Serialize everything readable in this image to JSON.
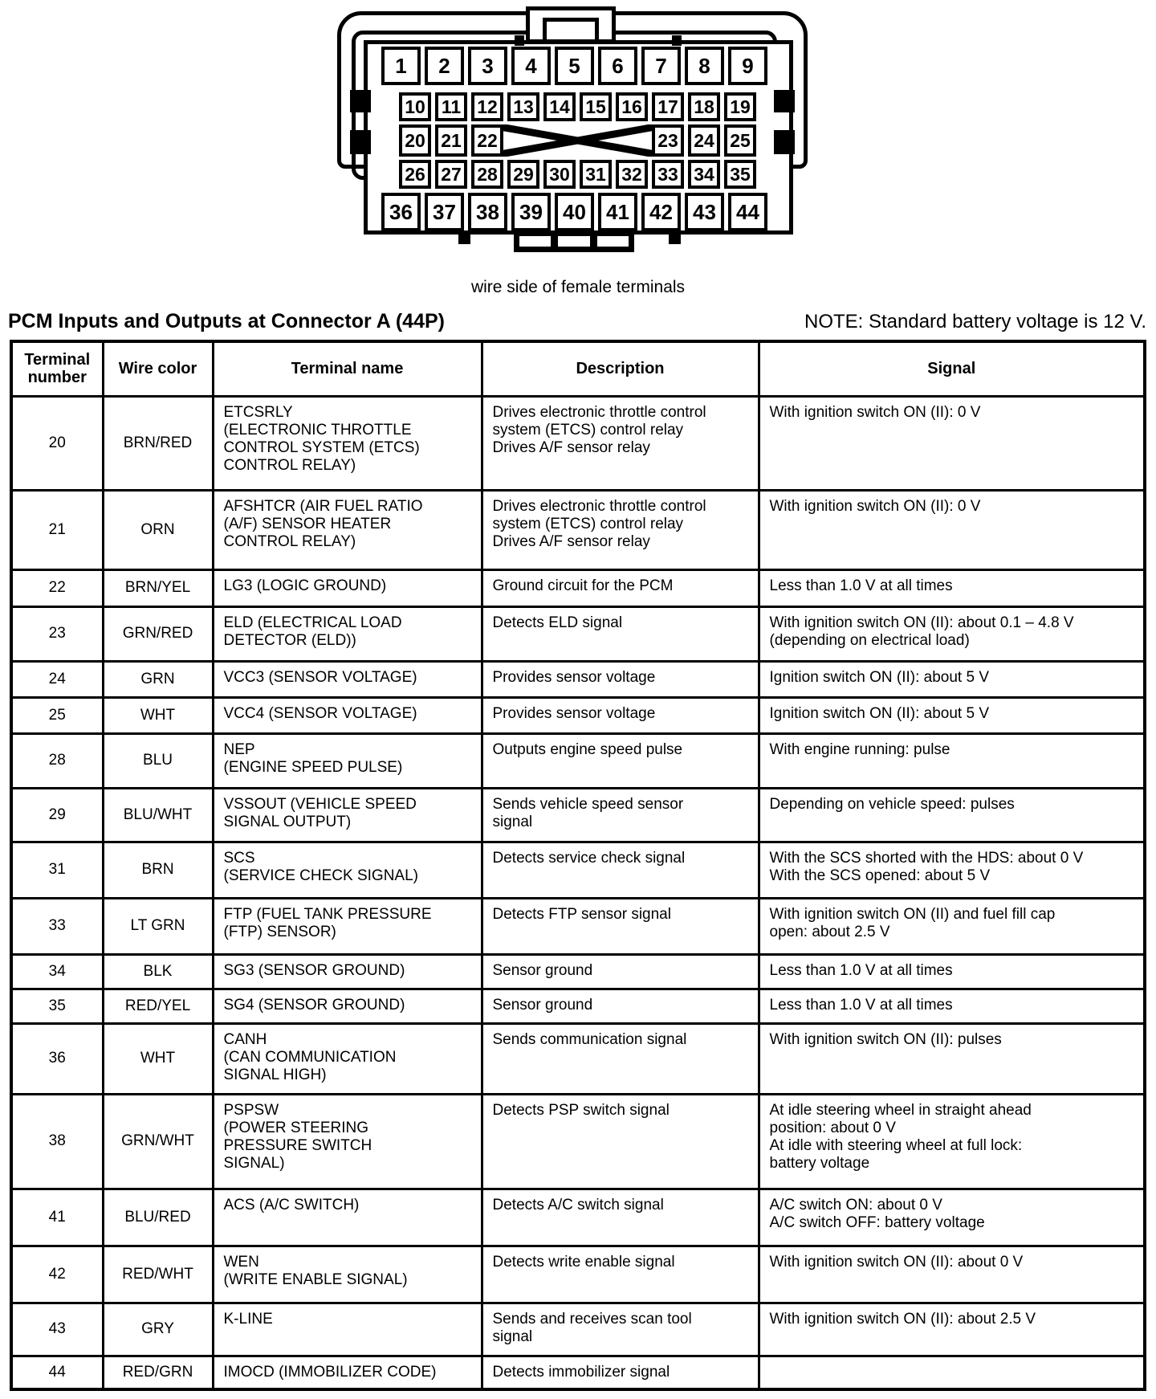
{
  "connector": {
    "caption": "wire side of female terminals",
    "pin_rows": [
      [
        1,
        2,
        3,
        4,
        5,
        6,
        7,
        8,
        9
      ],
      [
        10,
        11,
        12,
        13,
        14,
        15,
        16,
        17,
        18,
        19
      ],
      [
        20,
        21,
        22,
        23,
        24,
        25
      ],
      [
        26,
        27,
        28,
        29,
        30,
        31,
        32,
        33,
        34,
        35
      ],
      [
        36,
        37,
        38,
        39,
        40,
        41,
        42,
        43,
        44
      ]
    ]
  },
  "section": {
    "title": "PCM Inputs and Outputs at Connector A (44P)",
    "note": "NOTE: Standard battery voltage is 12 V."
  },
  "table": {
    "headers": [
      "Terminal\nnumber",
      "Wire color",
      "Terminal name",
      "Description",
      "Signal"
    ],
    "rows": [
      {
        "terminal": "20",
        "wire_color": "BRN/RED",
        "terminal_name": "ETCSRLY\n(ELECTRONIC THROTTLE\nCONTROL SYSTEM (ETCS)\nCONTROL RELAY)",
        "description": "Drives electronic throttle control\nsystem (ETCS) control relay\nDrives A/F sensor relay",
        "signal": "With ignition switch ON (II): 0 V"
      },
      {
        "terminal": "21",
        "wire_color": "ORN",
        "terminal_name": "AFSHTCR (AIR FUEL RATIO\n(A/F) SENSOR HEATER\nCONTROL RELAY)",
        "description": "Drives electronic throttle control\nsystem (ETCS) control relay\nDrives A/F sensor relay",
        "signal": "With ignition switch ON (II): 0 V"
      },
      {
        "terminal": "22",
        "wire_color": "BRN/YEL",
        "terminal_name": "LG3 (LOGIC GROUND)",
        "description": "Ground circuit for the PCM",
        "signal": "Less than 1.0 V at all times"
      },
      {
        "terminal": "23",
        "wire_color": "GRN/RED",
        "terminal_name": "ELD (ELECTRICAL LOAD\nDETECTOR (ELD))",
        "description": "Detects ELD signal",
        "signal": "With ignition switch ON (II): about 0.1 – 4.8 V\n(depending on electrical load)"
      },
      {
        "terminal": "24",
        "wire_color": "GRN",
        "terminal_name": "VCC3 (SENSOR VOLTAGE)",
        "description": "Provides sensor voltage",
        "signal": "Ignition switch ON (II): about 5 V"
      },
      {
        "terminal": "25",
        "wire_color": "WHT",
        "terminal_name": "VCC4 (SENSOR VOLTAGE)",
        "description": "Provides sensor voltage",
        "signal": "Ignition switch ON (II): about 5 V"
      },
      {
        "terminal": "28",
        "wire_color": "BLU",
        "terminal_name": "NEP\n(ENGINE SPEED PULSE)",
        "description": "Outputs engine speed pulse",
        "signal": "With engine running: pulse"
      },
      {
        "terminal": "29",
        "wire_color": "BLU/WHT",
        "terminal_name": "VSSOUT (VEHICLE SPEED\nSIGNAL OUTPUT)",
        "description": "Sends vehicle speed sensor\nsignal",
        "signal": "Depending on vehicle speed: pulses"
      },
      {
        "terminal": "31",
        "wire_color": "BRN",
        "terminal_name": "SCS\n(SERVICE CHECK SIGNAL)",
        "description": "Detects service check signal",
        "signal": "With the SCS shorted with the HDS: about 0 V\nWith the SCS opened: about 5 V"
      },
      {
        "terminal": "33",
        "wire_color": "LT GRN",
        "terminal_name": "FTP (FUEL TANK PRESSURE\n(FTP) SENSOR)",
        "description": "Detects FTP sensor signal",
        "signal": "With ignition switch ON (II) and fuel fill cap\nopen: about 2.5 V"
      },
      {
        "terminal": "34",
        "wire_color": "BLK",
        "terminal_name": "SG3 (SENSOR GROUND)",
        "description": "Sensor ground",
        "signal": "Less than 1.0 V at all times"
      },
      {
        "terminal": "35",
        "wire_color": "RED/YEL",
        "terminal_name": "SG4 (SENSOR GROUND)",
        "description": "Sensor ground",
        "signal": "Less than 1.0 V at all times"
      },
      {
        "terminal": "36",
        "wire_color": "WHT",
        "terminal_name": "CANH\n(CAN COMMUNICATION\nSIGNAL HIGH)",
        "description": "Sends communication signal",
        "signal": "With ignition switch ON (II): pulses"
      },
      {
        "terminal": "38",
        "wire_color": "GRN/WHT",
        "terminal_name": "PSPSW\n(POWER STEERING\nPRESSURE SWITCH\nSIGNAL)",
        "description": "Detects PSP switch signal",
        "signal": "At idle steering wheel in straight ahead\nposition: about 0 V\nAt idle with steering wheel at full lock:\nbattery voltage"
      },
      {
        "terminal": "41",
        "wire_color": "BLU/RED",
        "terminal_name": "ACS (A/C SWITCH)",
        "description": "Detects A/C switch signal",
        "signal": "A/C switch ON: about 0 V\nA/C switch OFF: battery voltage"
      },
      {
        "terminal": "42",
        "wire_color": "RED/WHT",
        "terminal_name": "WEN\n(WRITE ENABLE SIGNAL)",
        "description": "Detects write enable signal",
        "signal": "With ignition switch ON (II): about 0 V"
      },
      {
        "terminal": "43",
        "wire_color": "GRY",
        "terminal_name": "K-LINE",
        "description": "Sends and receives scan tool\nsignal",
        "signal": "With ignition switch ON (II): about 2.5 V"
      },
      {
        "terminal": "44",
        "wire_color": "RED/GRN",
        "terminal_name": "IMOCD (IMMOBILIZER CODE)",
        "description": "Detects immobilizer signal",
        "signal": ""
      }
    ]
  }
}
